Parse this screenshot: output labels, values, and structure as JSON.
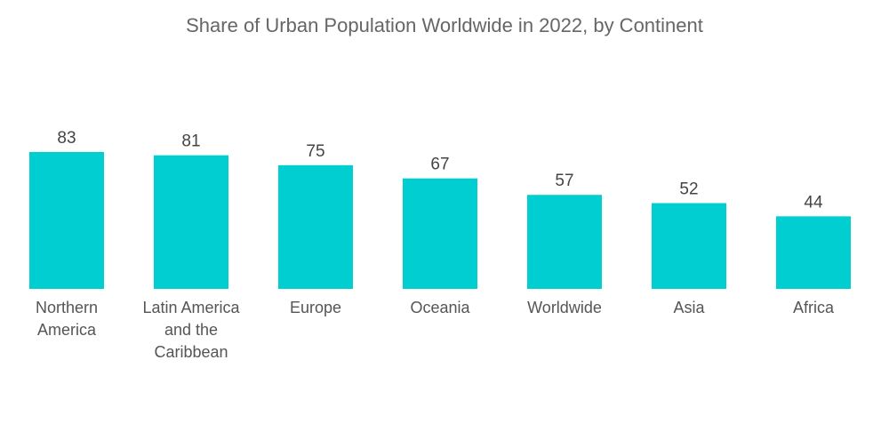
{
  "chart_data": {
    "type": "bar",
    "title": "Share of Urban Population Worldwide in 2022, by Continent",
    "categories": [
      "Northern America",
      "Latin America and the Caribbean",
      "Europe",
      "Oceania",
      "Worldwide",
      "Asia",
      "Africa"
    ],
    "category_lines": [
      [
        "Northern",
        "America"
      ],
      [
        "Latin America",
        "and the",
        "Caribbean"
      ],
      [
        "Europe"
      ],
      [
        "Oceania"
      ],
      [
        "Worldwide"
      ],
      [
        "Asia"
      ],
      [
        "Africa"
      ]
    ],
    "values": [
      83,
      81,
      75,
      67,
      57,
      52,
      44
    ],
    "xlabel": "",
    "ylabel": "",
    "ylim": [
      0,
      100
    ],
    "grid": false,
    "legend": "none",
    "bar_color": "#00CED1"
  }
}
